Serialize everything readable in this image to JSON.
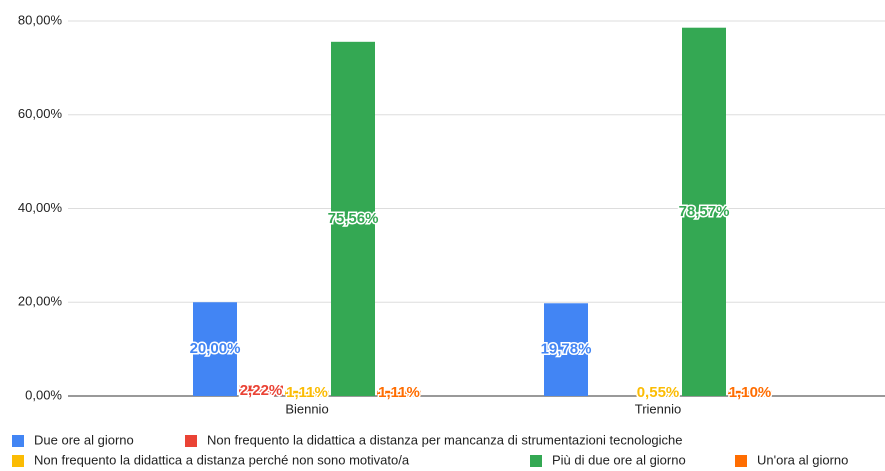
{
  "chart_data": {
    "type": "bar",
    "categories": [
      "Biennio",
      "Triennio"
    ],
    "series": [
      {
        "name": "Due ore al giorno",
        "color": "#4285f4",
        "values": [
          20,
          19.78
        ],
        "value_labels": [
          "20,00%",
          "19,78%"
        ]
      },
      {
        "name": "Non frequento la didattica a distanza per mancanza di strumentazioni tecnologiche",
        "color": "#ea4335",
        "values": [
          2.22,
          null
        ],
        "value_labels": [
          "2,22%",
          null
        ]
      },
      {
        "name": "Non frequento la didattica a distanza perché non sono motivato/a",
        "color": "#fbbc04",
        "values": [
          1.11,
          0.55
        ],
        "value_labels": [
          "1,11%",
          "0,55%"
        ]
      },
      {
        "name": "Più di due ore al giorno",
        "color": "#34a853",
        "values": [
          75.56,
          78.57
        ],
        "value_labels": [
          "75,56%",
          "78,57%"
        ]
      },
      {
        "name": "Un'ora al giorno",
        "color": "#ff6d01",
        "values": [
          1.11,
          1.1
        ],
        "value_labels": [
          "1,11%",
          "1,10%"
        ]
      }
    ],
    "ylim": [
      0,
      80
    ],
    "yticks": [
      {
        "value": 0,
        "label": "0,00%"
      },
      {
        "value": 20,
        "label": "20,00%"
      },
      {
        "value": 40,
        "label": "40,00%"
      },
      {
        "value": 60,
        "label": "60,00%"
      },
      {
        "value": 80,
        "label": "80,00%"
      }
    ],
    "grid": true
  }
}
